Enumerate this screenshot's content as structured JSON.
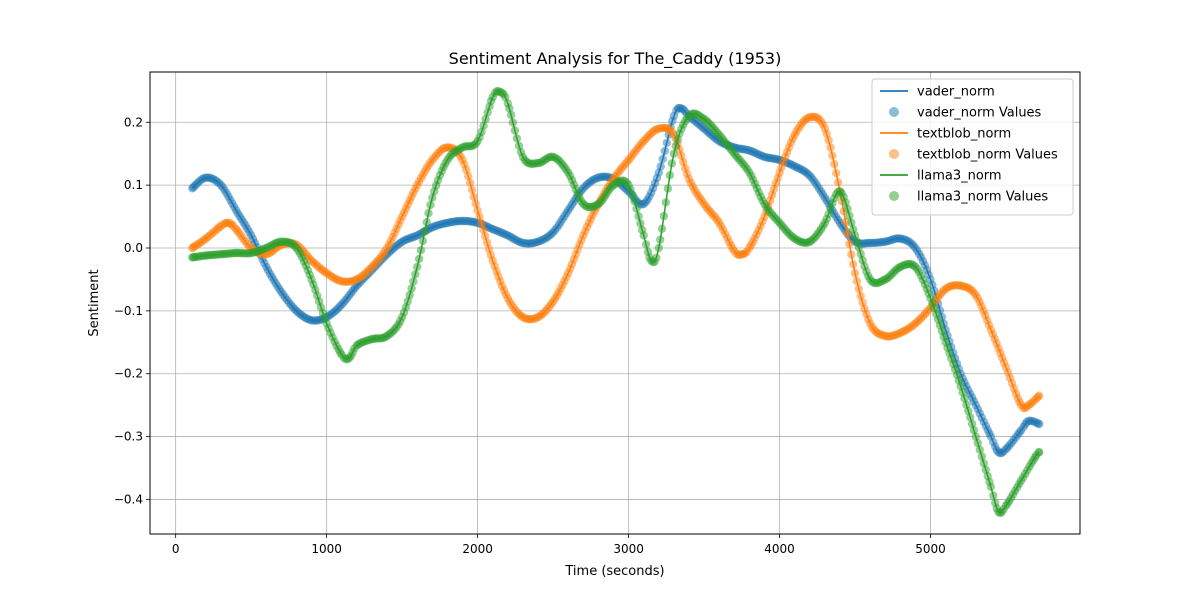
{
  "chart_data": {
    "type": "line",
    "title": "Sentiment Analysis for The_Caddy (1953)",
    "xlabel": "Time (seconds)",
    "ylabel": "Sentiment",
    "xlim": [
      -170,
      5990
    ],
    "ylim": [
      -0.455,
      0.28
    ],
    "grid": true,
    "legend_position": "top-right",
    "x_ticks": [
      0,
      1000,
      2000,
      3000,
      4000,
      5000
    ],
    "y_ticks": [
      -0.4,
      -0.3,
      -0.2,
      -0.1,
      0.0,
      0.1,
      0.2
    ],
    "x_tick_labels": [
      "0",
      "1000",
      "2000",
      "3000",
      "4000",
      "5000"
    ],
    "y_tick_labels": [
      "−0.4",
      "−0.3",
      "−0.2",
      "−0.1",
      "0.0",
      "0.1",
      "0.2"
    ],
    "series": [
      {
        "name": "vader_norm",
        "color": "#1f77b4",
        "points": [
          [
            110,
            0.095
          ],
          [
            200,
            0.112
          ],
          [
            300,
            0.1
          ],
          [
            400,
            0.06
          ],
          [
            500,
            0.02
          ],
          [
            600,
            -0.03
          ],
          [
            700,
            -0.07
          ],
          [
            800,
            -0.1
          ],
          [
            900,
            -0.115
          ],
          [
            1000,
            -0.11
          ],
          [
            1100,
            -0.09
          ],
          [
            1200,
            -0.06
          ],
          [
            1300,
            -0.035
          ],
          [
            1400,
            -0.01
          ],
          [
            1500,
            0.01
          ],
          [
            1600,
            0.02
          ],
          [
            1700,
            0.033
          ],
          [
            1800,
            0.04
          ],
          [
            1900,
            0.043
          ],
          [
            2000,
            0.04
          ],
          [
            2100,
            0.03
          ],
          [
            2200,
            0.02
          ],
          [
            2300,
            0.008
          ],
          [
            2400,
            0.01
          ],
          [
            2500,
            0.025
          ],
          [
            2600,
            0.06
          ],
          [
            2700,
            0.095
          ],
          [
            2800,
            0.112
          ],
          [
            2900,
            0.11
          ],
          [
            3000,
            0.09
          ],
          [
            3100,
            0.07
          ],
          [
            3200,
            0.12
          ],
          [
            3300,
            0.21
          ],
          [
            3350,
            0.222
          ],
          [
            3400,
            0.21
          ],
          [
            3500,
            0.19
          ],
          [
            3600,
            0.17
          ],
          [
            3700,
            0.16
          ],
          [
            3800,
            0.155
          ],
          [
            3900,
            0.145
          ],
          [
            4000,
            0.14
          ],
          [
            4100,
            0.13
          ],
          [
            4200,
            0.115
          ],
          [
            4300,
            0.08
          ],
          [
            4400,
            0.04
          ],
          [
            4500,
            0.01
          ],
          [
            4600,
            0.008
          ],
          [
            4700,
            0.01
          ],
          [
            4800,
            0.015
          ],
          [
            4900,
            0.0
          ],
          [
            5000,
            -0.05
          ],
          [
            5100,
            -0.13
          ],
          [
            5200,
            -0.2
          ],
          [
            5300,
            -0.25
          ],
          [
            5400,
            -0.3
          ],
          [
            5450,
            -0.325
          ],
          [
            5500,
            -0.32
          ],
          [
            5600,
            -0.29
          ],
          [
            5650,
            -0.275
          ],
          [
            5720,
            -0.28
          ]
        ]
      },
      {
        "name": "textblob_norm",
        "color": "#ff7f0e",
        "points": [
          [
            110,
            0.0
          ],
          [
            200,
            0.015
          ],
          [
            300,
            0.035
          ],
          [
            350,
            0.04
          ],
          [
            400,
            0.03
          ],
          [
            500,
            0.0
          ],
          [
            600,
            -0.01
          ],
          [
            700,
            0.005
          ],
          [
            800,
            0.005
          ],
          [
            900,
            -0.02
          ],
          [
            1000,
            -0.04
          ],
          [
            1100,
            -0.053
          ],
          [
            1200,
            -0.05
          ],
          [
            1300,
            -0.03
          ],
          [
            1400,
            0.0
          ],
          [
            1500,
            0.05
          ],
          [
            1600,
            0.1
          ],
          [
            1700,
            0.14
          ],
          [
            1800,
            0.16
          ],
          [
            1900,
            0.14
          ],
          [
            2000,
            0.06
          ],
          [
            2100,
            -0.02
          ],
          [
            2200,
            -0.08
          ],
          [
            2300,
            -0.11
          ],
          [
            2400,
            -0.11
          ],
          [
            2500,
            -0.085
          ],
          [
            2600,
            -0.04
          ],
          [
            2700,
            0.02
          ],
          [
            2800,
            0.07
          ],
          [
            2900,
            0.11
          ],
          [
            3000,
            0.14
          ],
          [
            3100,
            0.17
          ],
          [
            3200,
            0.19
          ],
          [
            3300,
            0.18
          ],
          [
            3400,
            0.11
          ],
          [
            3500,
            0.07
          ],
          [
            3600,
            0.04
          ],
          [
            3700,
            -0.005
          ],
          [
            3750,
            -0.01
          ],
          [
            3800,
            0.0
          ],
          [
            3900,
            0.05
          ],
          [
            4000,
            0.12
          ],
          [
            4100,
            0.18
          ],
          [
            4200,
            0.208
          ],
          [
            4300,
            0.19
          ],
          [
            4400,
            0.09
          ],
          [
            4500,
            -0.04
          ],
          [
            4600,
            -0.12
          ],
          [
            4700,
            -0.14
          ],
          [
            4800,
            -0.135
          ],
          [
            4900,
            -0.12
          ],
          [
            5000,
            -0.095
          ],
          [
            5100,
            -0.065
          ],
          [
            5200,
            -0.06
          ],
          [
            5300,
            -0.075
          ],
          [
            5400,
            -0.13
          ],
          [
            5500,
            -0.19
          ],
          [
            5600,
            -0.25
          ],
          [
            5650,
            -0.25
          ],
          [
            5720,
            -0.235
          ]
        ]
      },
      {
        "name": "llama3_norm",
        "color": "#2ca02c",
        "points": [
          [
            110,
            -0.015
          ],
          [
            200,
            -0.012
          ],
          [
            300,
            -0.01
          ],
          [
            400,
            -0.008
          ],
          [
            500,
            -0.008
          ],
          [
            600,
            0.0
          ],
          [
            700,
            0.01
          ],
          [
            800,
            0.0
          ],
          [
            900,
            -0.05
          ],
          [
            1000,
            -0.12
          ],
          [
            1100,
            -0.17
          ],
          [
            1150,
            -0.175
          ],
          [
            1200,
            -0.155
          ],
          [
            1300,
            -0.145
          ],
          [
            1400,
            -0.14
          ],
          [
            1500,
            -0.11
          ],
          [
            1600,
            -0.03
          ],
          [
            1700,
            0.08
          ],
          [
            1800,
            0.14
          ],
          [
            1900,
            0.16
          ],
          [
            2000,
            0.17
          ],
          [
            2100,
            0.24
          ],
          [
            2150,
            0.248
          ],
          [
            2200,
            0.23
          ],
          [
            2300,
            0.145
          ],
          [
            2400,
            0.135
          ],
          [
            2500,
            0.145
          ],
          [
            2600,
            0.12
          ],
          [
            2700,
            0.07
          ],
          [
            2800,
            0.07
          ],
          [
            2900,
            0.1
          ],
          [
            3000,
            0.1
          ],
          [
            3100,
            0.02
          ],
          [
            3150,
            -0.02
          ],
          [
            3200,
            0.0
          ],
          [
            3300,
            0.15
          ],
          [
            3400,
            0.21
          ],
          [
            3500,
            0.205
          ],
          [
            3600,
            0.18
          ],
          [
            3700,
            0.15
          ],
          [
            3800,
            0.12
          ],
          [
            3900,
            0.07
          ],
          [
            4000,
            0.04
          ],
          [
            4100,
            0.015
          ],
          [
            4200,
            0.01
          ],
          [
            4300,
            0.04
          ],
          [
            4400,
            0.09
          ],
          [
            4500,
            0.02
          ],
          [
            4600,
            -0.05
          ],
          [
            4700,
            -0.05
          ],
          [
            4800,
            -0.03
          ],
          [
            4900,
            -0.03
          ],
          [
            5000,
            -0.08
          ],
          [
            5100,
            -0.15
          ],
          [
            5200,
            -0.22
          ],
          [
            5300,
            -0.3
          ],
          [
            5400,
            -0.38
          ],
          [
            5450,
            -0.42
          ],
          [
            5500,
            -0.41
          ],
          [
            5600,
            -0.37
          ],
          [
            5700,
            -0.33
          ],
          [
            5720,
            -0.325
          ]
        ]
      }
    ]
  },
  "legend": {
    "items": [
      {
        "label": "vader_norm",
        "kind": "line",
        "color": "#1f77b4"
      },
      {
        "label": "vader_norm Values",
        "kind": "marker",
        "color": "#1f77b4"
      },
      {
        "label": "textblob_norm",
        "kind": "line",
        "color": "#ff7f0e"
      },
      {
        "label": "textblob_norm Values",
        "kind": "marker",
        "color": "#ff7f0e"
      },
      {
        "label": "llama3_norm",
        "kind": "line",
        "color": "#2ca02c"
      },
      {
        "label": "llama3_norm Values",
        "kind": "marker",
        "color": "#2ca02c"
      }
    ]
  }
}
